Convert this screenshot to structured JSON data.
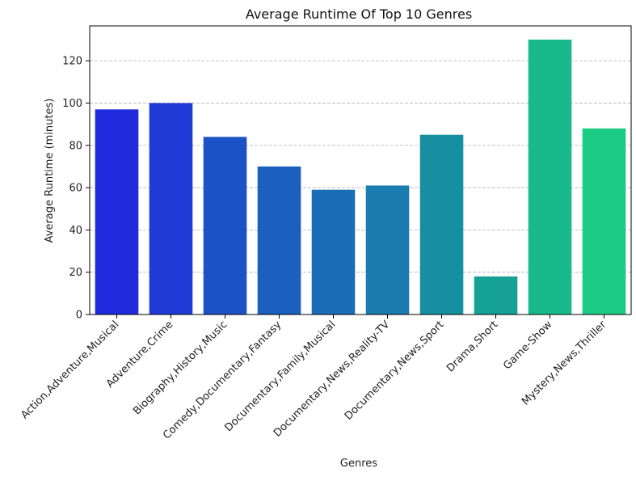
{
  "chart_data": {
    "type": "bar",
    "title": "Average Runtime Of Top 10 Genres",
    "xlabel": "Genres",
    "ylabel": "Average Runtime (minutes)",
    "categories": [
      "Action,Adventure,Musical",
      "Adventure,Crime",
      "Biography,History,Music",
      "Comedy,Documentary,Fantasy",
      "Documentary,Family,Musical",
      "Documentary,News,Reality-TV",
      "Documentary,News,Sport",
      "Drama,Short",
      "Game-Show",
      "Mystery,News,Thriller"
    ],
    "values": [
      97,
      100,
      84,
      70,
      59,
      61,
      85,
      18,
      130,
      88
    ],
    "colors": [
      "#1f2bdc",
      "#1f3ad6",
      "#1d52c6",
      "#1b5fbf",
      "#1b6eb5",
      "#1a7caf",
      "#1690a0",
      "#15a294",
      "#18b98a",
      "#1ccb84"
    ],
    "ylim": [
      0,
      136.5
    ],
    "yticks": [
      0,
      20,
      40,
      60,
      80,
      100,
      120
    ],
    "grid": "y-dashed"
  }
}
